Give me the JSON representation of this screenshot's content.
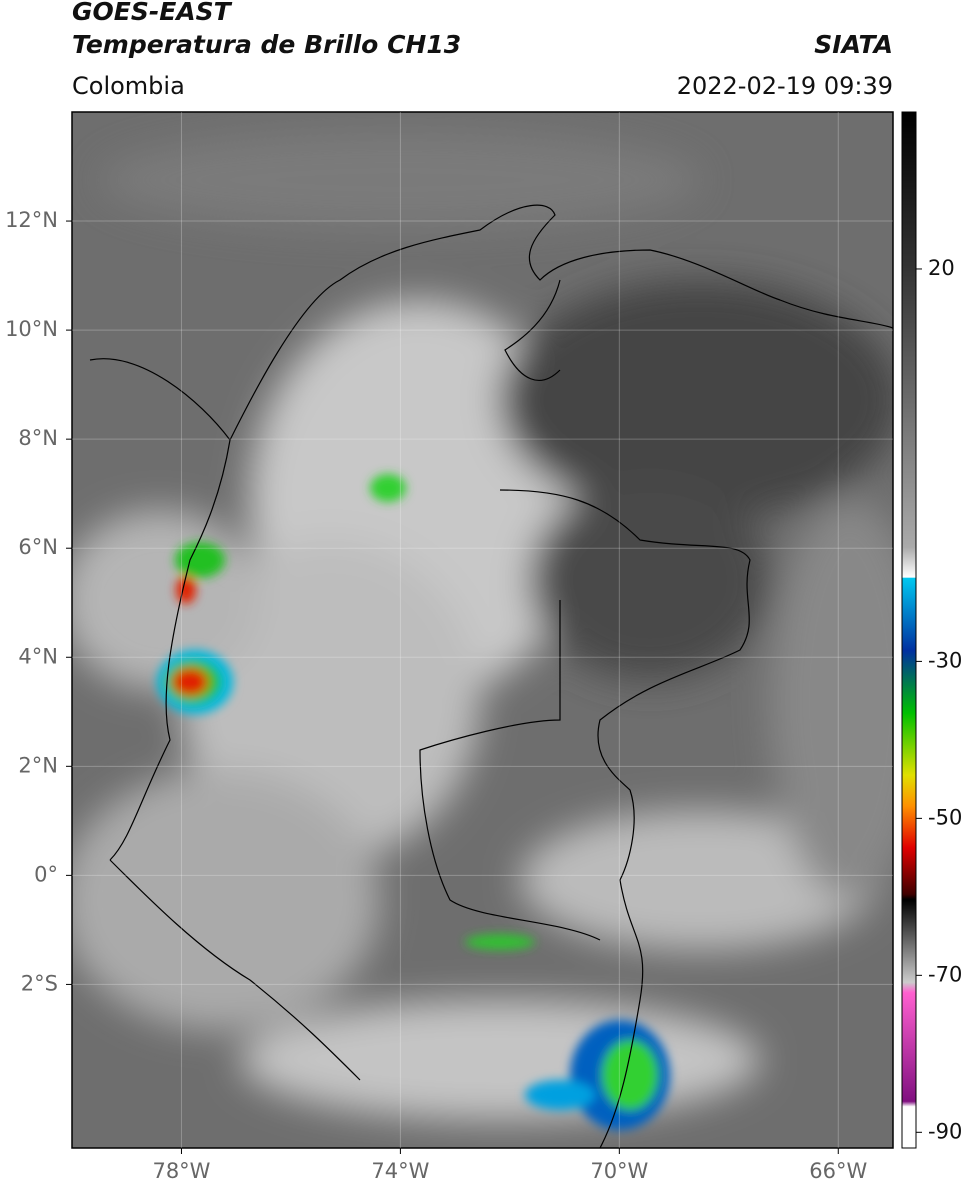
{
  "header": {
    "satellite": "GOES-EAST",
    "product": "Temperatura de Brillo CH13",
    "region": "Colombia",
    "source": "SIATA",
    "datetime": "2022-02-19 09:39"
  },
  "map": {
    "xlim": [
      -80,
      -65
    ],
    "ylim": [
      -5,
      14
    ],
    "xticks": [
      {
        "value": -78,
        "label": "78°W"
      },
      {
        "value": -74,
        "label": "74°W"
      },
      {
        "value": -70,
        "label": "70°W"
      },
      {
        "value": -66,
        "label": "66°W"
      }
    ],
    "yticks": [
      {
        "value": 12,
        "label": "12°N"
      },
      {
        "value": 10,
        "label": "10°N"
      },
      {
        "value": 8,
        "label": "8°N"
      },
      {
        "value": 6,
        "label": "6°N"
      },
      {
        "value": 4,
        "label": "4°N"
      },
      {
        "value": 2,
        "label": "2°N"
      },
      {
        "value": 0,
        "label": "0°"
      },
      {
        "value": -2,
        "label": "2°S"
      }
    ]
  },
  "colorbar": {
    "lim": [
      -92,
      40
    ],
    "ticks": [
      20,
      -30,
      -50,
      -70,
      -90
    ]
  }
}
